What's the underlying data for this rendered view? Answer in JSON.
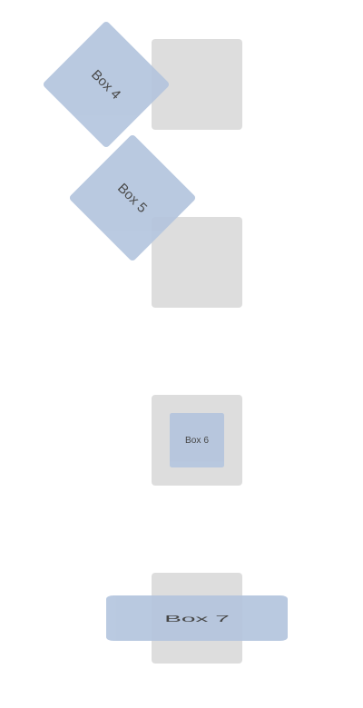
{
  "colors": {
    "box_fill": "#b4c5de",
    "placeholder_fill": "#dddddd",
    "label_text": "#3a3a3a"
  },
  "boxes": [
    {
      "label": "Box 4",
      "transform": "rotate 45deg"
    },
    {
      "label": "Box 5",
      "transform": "rotate 45deg"
    },
    {
      "label": "Box 6",
      "transform": "scale 0.6"
    },
    {
      "label": "Box 7",
      "transform": "scaleX 2"
    }
  ]
}
